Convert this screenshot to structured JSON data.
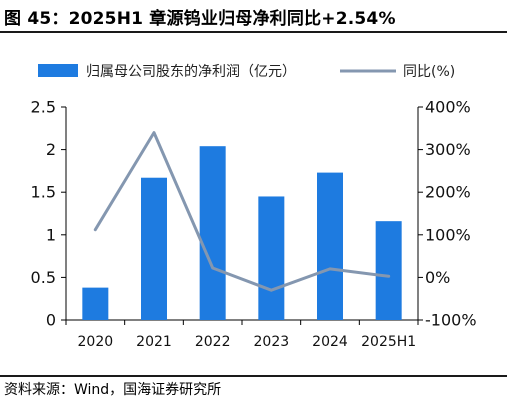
{
  "header": {
    "title": "图 45：2025H1 章源钨业归母净利同比+2.54%"
  },
  "footer": {
    "source": "资料来源：Wind，国海证券研究所"
  },
  "colors": {
    "bar": "#1e7be0",
    "line": "#8497b0",
    "axis": "#000000"
  },
  "chart_data": {
    "type": "bar",
    "categories": [
      "2020",
      "2021",
      "2022",
      "2023",
      "2024",
      "2025H1"
    ],
    "series": [
      {
        "name": "归属母公司股东的净利润（亿元）",
        "type": "bar",
        "axis": "left",
        "values": [
          0.38,
          1.67,
          2.04,
          1.45,
          1.73,
          1.16
        ]
      },
      {
        "name": "同比(%)",
        "type": "line",
        "axis": "right",
        "values": [
          112,
          340,
          22,
          -30,
          20,
          2.54
        ]
      }
    ],
    "y_left": {
      "min": 0,
      "max": 2.5,
      "ticks": [
        "0",
        "0.5",
        "1",
        "1.5",
        "2",
        "2.5"
      ]
    },
    "y_right": {
      "min": -100,
      "max": 400,
      "ticks": [
        "-100%",
        "0%",
        "100%",
        "200%",
        "300%",
        "400%"
      ]
    },
    "grid": false,
    "legend_position": "top"
  }
}
